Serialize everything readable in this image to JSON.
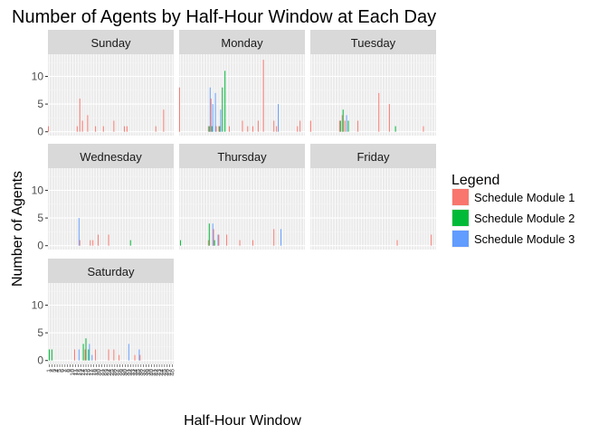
{
  "chart_data": {
    "type": "bar",
    "title": "Number of Agents by Half-Hour Window at Each Day",
    "xlabel": "Half-Hour Window",
    "ylabel": "Number of Agents",
    "ylim": [
      -0.7,
      14
    ],
    "yticks": [
      0,
      5,
      10
    ],
    "n_windows": 48,
    "grid": true,
    "legend": {
      "title": "Legend",
      "position": "right",
      "entries": [
        "Schedule Module 1",
        "Schedule Module 2",
        "Schedule Module 3"
      ]
    },
    "series_colors": {
      "Schedule Module 1": "#F8766D",
      "Schedule Module 2": "#00BA38",
      "Schedule Module 3": "#619CFF"
    },
    "facets": [
      {
        "name": "Sunday",
        "bars": [
          {
            "w": 1,
            "s": "Schedule Module 1",
            "v": 1
          },
          {
            "w": 12,
            "s": "Schedule Module 1",
            "v": 1
          },
          {
            "w": 13,
            "s": "Schedule Module 1",
            "v": 6
          },
          {
            "w": 14,
            "s": "Schedule Module 1",
            "v": 2
          },
          {
            "w": 16,
            "s": "Schedule Module 1",
            "v": 3
          },
          {
            "w": 19,
            "s": "Schedule Module 1",
            "v": 1
          },
          {
            "w": 22,
            "s": "Schedule Module 1",
            "v": 1
          },
          {
            "w": 26,
            "s": "Schedule Module 1",
            "v": 2
          },
          {
            "w": 30,
            "s": "Schedule Module 1",
            "v": 1
          },
          {
            "w": 31,
            "s": "Schedule Module 1",
            "v": 1
          },
          {
            "w": 42,
            "s": "Schedule Module 1",
            "v": 1
          },
          {
            "w": 45,
            "s": "Schedule Module 1",
            "v": 4
          }
        ]
      },
      {
        "name": "Monday",
        "bars": [
          {
            "w": 1,
            "s": "Schedule Module 1",
            "v": 8
          },
          {
            "w": 12,
            "s": "Schedule Module 1",
            "v": 1
          },
          {
            "w": 12,
            "s": "Schedule Module 2",
            "v": 1
          },
          {
            "w": 12,
            "s": "Schedule Module 3",
            "v": 8
          },
          {
            "w": 13,
            "s": "Schedule Module 1",
            "v": 6
          },
          {
            "w": 13,
            "s": "Schedule Module 2",
            "v": 1
          },
          {
            "w": 13,
            "s": "Schedule Module 3",
            "v": 5
          },
          {
            "w": 14,
            "s": "Schedule Module 3",
            "v": 7
          },
          {
            "w": 15,
            "s": "Schedule Module 1",
            "v": 1
          },
          {
            "w": 16,
            "s": "Schedule Module 1",
            "v": 1
          },
          {
            "w": 16,
            "s": "Schedule Module 2",
            "v": 1
          },
          {
            "w": 16,
            "s": "Schedule Module 3",
            "v": 4
          },
          {
            "w": 17,
            "s": "Schedule Module 2",
            "v": 8
          },
          {
            "w": 18,
            "s": "Schedule Module 2",
            "v": 11
          },
          {
            "w": 20,
            "s": "Schedule Module 1",
            "v": 1
          },
          {
            "w": 25,
            "s": "Schedule Module 1",
            "v": 2
          },
          {
            "w": 27,
            "s": "Schedule Module 1",
            "v": 1
          },
          {
            "w": 29,
            "s": "Schedule Module 1",
            "v": 1
          },
          {
            "w": 31,
            "s": "Schedule Module 1",
            "v": 2
          },
          {
            "w": 33,
            "s": "Schedule Module 1",
            "v": 13
          },
          {
            "w": 37,
            "s": "Schedule Module 1",
            "v": 2
          },
          {
            "w": 38,
            "s": "Schedule Module 3",
            "v": 5
          },
          {
            "w": 38,
            "s": "Schedule Module 1",
            "v": 1
          },
          {
            "w": 46,
            "s": "Schedule Module 1",
            "v": 1
          },
          {
            "w": 47,
            "s": "Schedule Module 1",
            "v": 2
          }
        ]
      },
      {
        "name": "Tuesday",
        "bars": [
          {
            "w": 1,
            "s": "Schedule Module 1",
            "v": 2
          },
          {
            "w": 12,
            "s": "Schedule Module 1",
            "v": 2
          },
          {
            "w": 12,
            "s": "Schedule Module 2",
            "v": 2
          },
          {
            "w": 13,
            "s": "Schedule Module 1",
            "v": 3
          },
          {
            "w": 13,
            "s": "Schedule Module 2",
            "v": 4
          },
          {
            "w": 14,
            "s": "Schedule Module 1",
            "v": 2
          },
          {
            "w": 14,
            "s": "Schedule Module 3",
            "v": 3
          },
          {
            "w": 15,
            "s": "Schedule Module 2",
            "v": 2
          },
          {
            "w": 19,
            "s": "Schedule Module 1",
            "v": 2
          },
          {
            "w": 27,
            "s": "Schedule Module 1",
            "v": 7
          },
          {
            "w": 31,
            "s": "Schedule Module 1",
            "v": 5
          },
          {
            "w": 33,
            "s": "Schedule Module 2",
            "v": 1
          },
          {
            "w": 44,
            "s": "Schedule Module 1",
            "v": 1
          }
        ]
      },
      {
        "name": "Wednesday",
        "bars": [
          {
            "w": 12,
            "s": "Schedule Module 3",
            "v": 5
          },
          {
            "w": 13,
            "s": "Schedule Module 1",
            "v": 1
          },
          {
            "w": 17,
            "s": "Schedule Module 1",
            "v": 1
          },
          {
            "w": 18,
            "s": "Schedule Module 1",
            "v": 1
          },
          {
            "w": 20,
            "s": "Schedule Module 1",
            "v": 2
          },
          {
            "w": 24,
            "s": "Schedule Module 1",
            "v": 2
          },
          {
            "w": 32,
            "s": "Schedule Module 2",
            "v": 1
          }
        ]
      },
      {
        "name": "Thursday",
        "bars": [
          {
            "w": 1,
            "s": "Schedule Module 2",
            "v": 1
          },
          {
            "w": 12,
            "s": "Schedule Module 1",
            "v": 1
          },
          {
            "w": 12,
            "s": "Schedule Module 2",
            "v": 4
          },
          {
            "w": 13,
            "s": "Schedule Module 3",
            "v": 4
          },
          {
            "w": 14,
            "s": "Schedule Module 1",
            "v": 3
          },
          {
            "w": 14,
            "s": "Schedule Module 2",
            "v": 1
          },
          {
            "w": 15,
            "s": "Schedule Module 3",
            "v": 2
          },
          {
            "w": 16,
            "s": "Schedule Module 1",
            "v": 2
          },
          {
            "w": 19,
            "s": "Schedule Module 1",
            "v": 2
          },
          {
            "w": 24,
            "s": "Schedule Module 1",
            "v": 1
          },
          {
            "w": 29,
            "s": "Schedule Module 1",
            "v": 1
          },
          {
            "w": 37,
            "s": "Schedule Module 1",
            "v": 3
          },
          {
            "w": 39,
            "s": "Schedule Module 3",
            "v": 3
          }
        ]
      },
      {
        "name": "Friday",
        "bars": [
          {
            "w": 34,
            "s": "Schedule Module 1",
            "v": 1
          },
          {
            "w": 47,
            "s": "Schedule Module 1",
            "v": 2
          }
        ]
      },
      {
        "name": "Saturday",
        "bars": [
          {
            "w": 1,
            "s": "Schedule Module 2",
            "v": 2
          },
          {
            "w": 2,
            "s": "Schedule Module 2",
            "v": 2
          },
          {
            "w": 11,
            "s": "Schedule Module 1",
            "v": 2
          },
          {
            "w": 12,
            "s": "Schedule Module 3",
            "v": 2
          },
          {
            "w": 14,
            "s": "Schedule Module 2",
            "v": 3
          },
          {
            "w": 15,
            "s": "Schedule Module 2",
            "v": 4
          },
          {
            "w": 15,
            "s": "Schedule Module 1",
            "v": 2
          },
          {
            "w": 16,
            "s": "Schedule Module 2",
            "v": 2
          },
          {
            "w": 16,
            "s": "Schedule Module 3",
            "v": 3
          },
          {
            "w": 17,
            "s": "Schedule Module 3",
            "v": 1
          },
          {
            "w": 19,
            "s": "Schedule Module 1",
            "v": 2
          },
          {
            "w": 24,
            "s": "Schedule Module 1",
            "v": 2
          },
          {
            "w": 26,
            "s": "Schedule Module 1",
            "v": 2
          },
          {
            "w": 28,
            "s": "Schedule Module 1",
            "v": 1
          },
          {
            "w": 31,
            "s": "Schedule Module 3",
            "v": 3
          },
          {
            "w": 34,
            "s": "Schedule Module 1",
            "v": 1
          },
          {
            "w": 35,
            "s": "Schedule Module 3",
            "v": 2
          },
          {
            "w": 36,
            "s": "Schedule Module 1",
            "v": 1
          }
        ]
      }
    ]
  }
}
